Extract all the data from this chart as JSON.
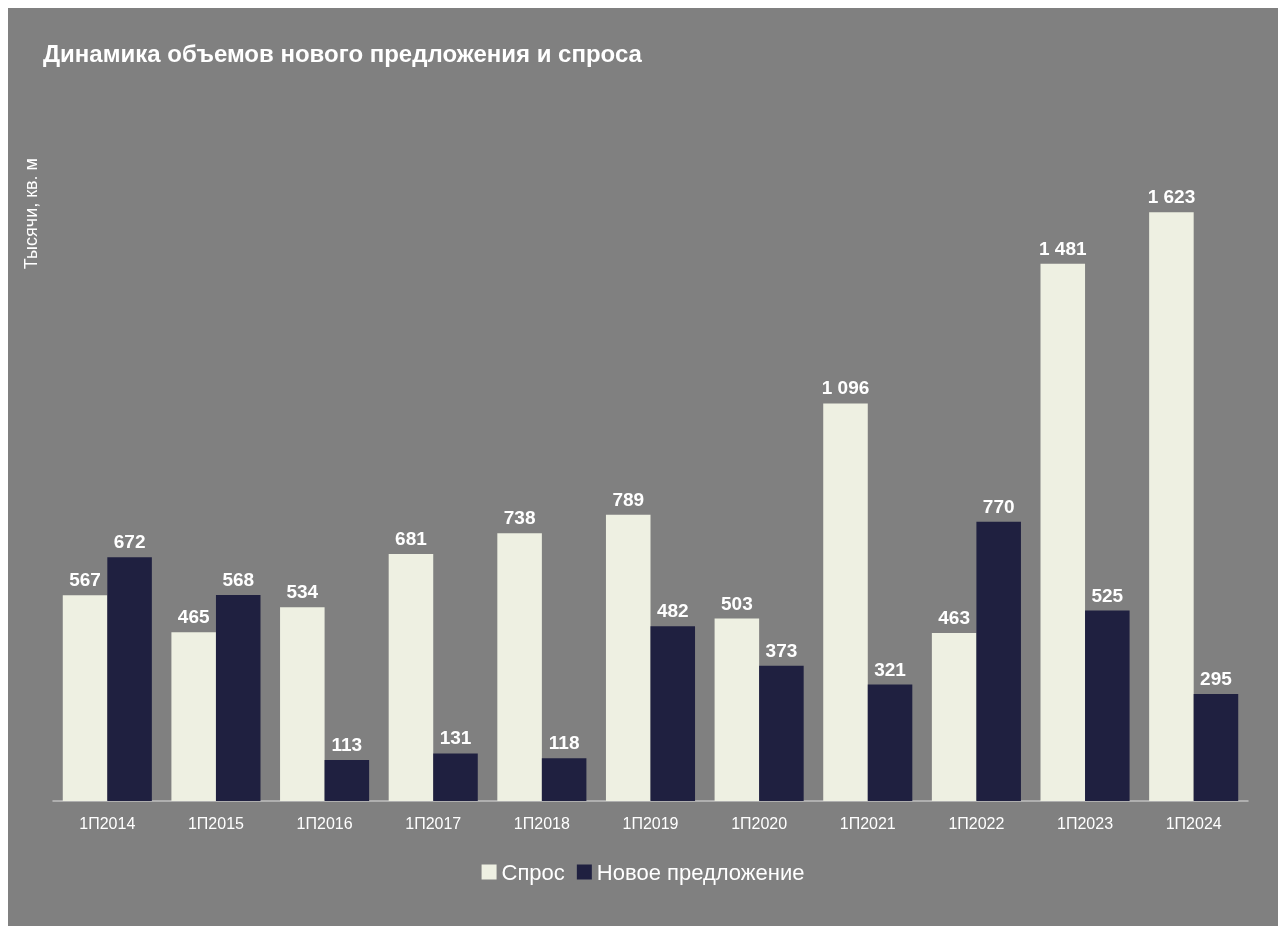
{
  "chart_data": {
    "type": "bar",
    "title": "Динамика объемов нового предложения и спроса",
    "ylabel": "Тысячи, кв. м",
    "categories": [
      "1П2014",
      "1П2015",
      "1П2016",
      "1П2017",
      "1П2018",
      "1П2019",
      "1П2020",
      "1П2021",
      "1П2022",
      "1П2023",
      "1П2024"
    ],
    "series": [
      {
        "name": "Спрос",
        "color": "#eef0e2",
        "values": [
          567,
          465,
          534,
          681,
          738,
          789,
          503,
          1096,
          463,
          1481,
          1623
        ]
      },
      {
        "name": "Новое предложение",
        "color": "#1f2040",
        "values": [
          672,
          568,
          113,
          131,
          118,
          482,
          373,
          321,
          770,
          525,
          295
        ]
      }
    ],
    "data_labels": true,
    "legend": "bottom",
    "grid": false
  }
}
